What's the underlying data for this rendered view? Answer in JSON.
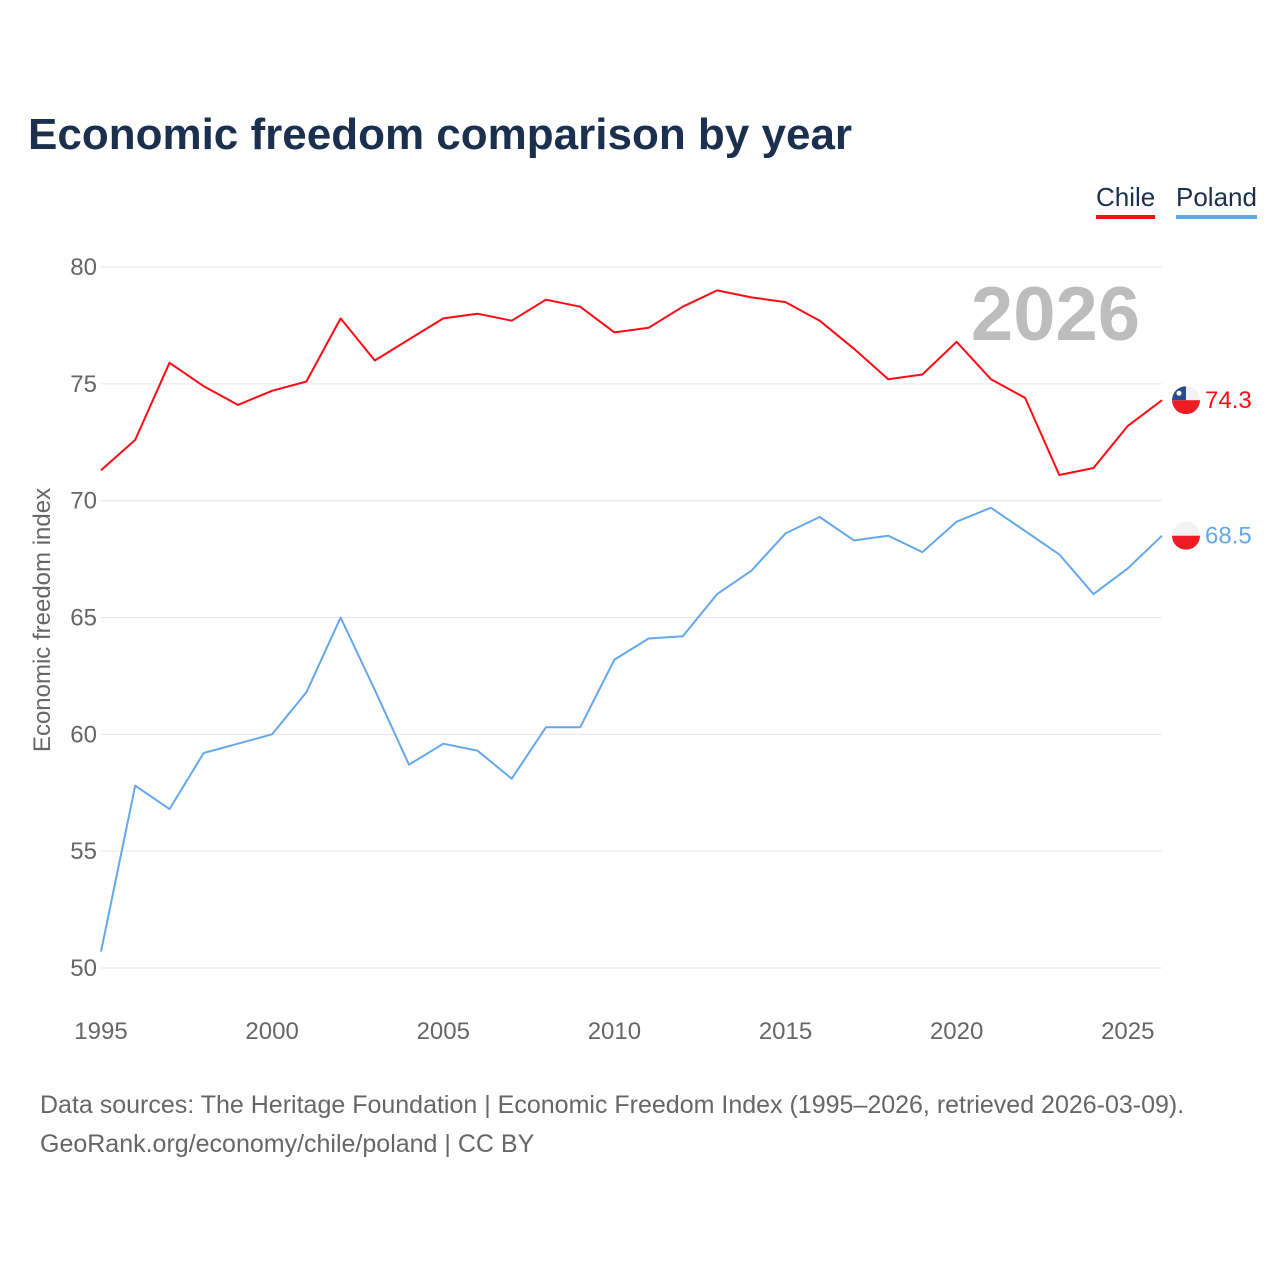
{
  "title": "Economic freedom comparison by year",
  "legend": [
    "Chile",
    "Poland"
  ],
  "watermark_year": "2026",
  "footer": {
    "line1": "Data sources: The Heritage Foundation | Economic Freedom Index (1995–2026, retrieved 2026-03-09).",
    "line2": "GeoRank.org/economy/chile/poland | CC BY"
  },
  "chart_data": {
    "type": "line",
    "title": "Economic freedom comparison by year",
    "xlabel": "",
    "ylabel": "Economic freedom index",
    "xlim": [
      1995,
      2026
    ],
    "ylim": [
      50,
      80
    ],
    "xticks": [
      "1995",
      "2000",
      "2005",
      "2010",
      "2015",
      "2020",
      "2025"
    ],
    "yticks": [
      "50",
      "55",
      "60",
      "65",
      "70",
      "75",
      "80"
    ],
    "grid": true,
    "legend_position": "top-right",
    "x": [
      1995,
      1996,
      1997,
      1998,
      1999,
      2000,
      2001,
      2002,
      2003,
      2004,
      2005,
      2006,
      2007,
      2008,
      2009,
      2010,
      2011,
      2012,
      2013,
      2014,
      2015,
      2016,
      2017,
      2018,
      2019,
      2020,
      2021,
      2022,
      2023,
      2024,
      2025,
      2026
    ],
    "series": [
      {
        "name": "Chile",
        "color": "#ff0a14",
        "end_label": "74.3",
        "values": [
          71.3,
          72.6,
          75.9,
          74.9,
          74.1,
          74.7,
          75.1,
          77.8,
          76.0,
          76.9,
          77.8,
          78.0,
          77.7,
          78.6,
          78.3,
          77.2,
          77.4,
          78.3,
          79.0,
          78.7,
          78.5,
          77.7,
          76.5,
          75.2,
          75.4,
          76.8,
          75.2,
          74.4,
          71.1,
          71.4,
          73.2,
          74.3
        ]
      },
      {
        "name": "Poland",
        "color": "#64a8ec",
        "end_label": "68.5",
        "values": [
          50.7,
          57.8,
          56.8,
          59.2,
          59.6,
          60.0,
          61.8,
          65.0,
          61.9,
          58.7,
          59.6,
          59.3,
          58.1,
          60.3,
          60.3,
          63.2,
          64.1,
          64.2,
          66.0,
          67.0,
          68.6,
          69.3,
          68.3,
          68.5,
          67.8,
          69.1,
          69.7,
          68.7,
          67.7,
          66.0,
          67.1,
          68.5
        ]
      }
    ]
  }
}
